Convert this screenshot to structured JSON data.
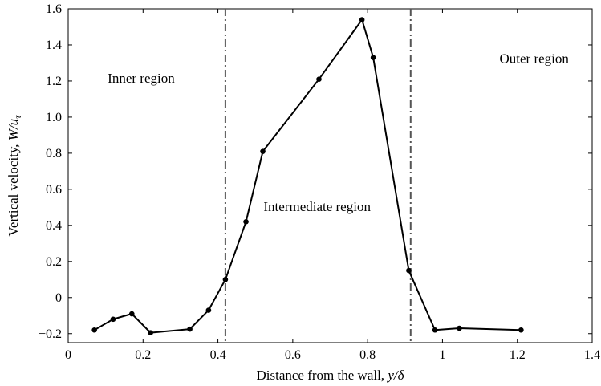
{
  "chart_data": {
    "type": "line",
    "xlabel": "Distance from the wall, ",
    "xlabel_italic": "y/δ",
    "ylabel": "Vertical velocity, ",
    "ylabel_italic": "W/u",
    "ylabel_subscript": "τ",
    "xlim": [
      0,
      1.4
    ],
    "ylim": [
      -0.25,
      1.6
    ],
    "x_ticks": [
      0,
      0.2,
      0.4,
      0.6,
      0.8,
      1.0,
      1.2,
      1.4
    ],
    "x_tick_labels": [
      "0",
      "0.2",
      "0.4",
      "0.6",
      "0.8",
      "1",
      "1.2",
      "1.4"
    ],
    "y_ticks": [
      -0.2,
      0,
      0.2,
      0.4,
      0.6,
      0.8,
      1.0,
      1.2,
      1.4,
      1.6
    ],
    "y_tick_labels": [
      "−0.2",
      "0",
      "0.2",
      "0.4",
      "0.6",
      "0.8",
      "1.0",
      "1.2",
      "1.4",
      "1.6"
    ],
    "grid": false,
    "series": [
      {
        "color": "#000000",
        "marker": "circle",
        "x": [
          0.07,
          0.12,
          0.17,
          0.22,
          0.325,
          0.375,
          0.42,
          0.475,
          0.52,
          0.67,
          0.785,
          0.815,
          0.91,
          0.98,
          1.045,
          1.21
        ],
        "y": [
          -0.18,
          -0.12,
          -0.09,
          -0.195,
          -0.175,
          -0.07,
          0.1,
          0.42,
          0.81,
          1.21,
          1.54,
          1.33,
          0.15,
          -0.18,
          -0.17,
          -0.18
        ]
      }
    ],
    "vlines": [
      {
        "x": 0.42,
        "style": "dash-dot",
        "color": "#555555"
      },
      {
        "x": 0.915,
        "style": "dash-dot",
        "color": "#555555"
      }
    ],
    "annotations": [
      {
        "text": "Inner region",
        "x": 0.195,
        "y": 1.19
      },
      {
        "text": "Intermediate region",
        "x": 0.665,
        "y": 0.48
      },
      {
        "text": "Outer region",
        "x": 1.245,
        "y": 1.3
      }
    ]
  }
}
